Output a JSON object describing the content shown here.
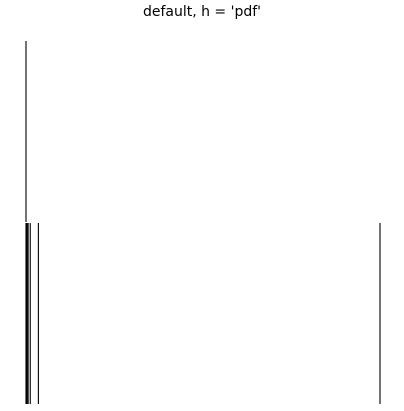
{
  "chart_data": {
    "type": "rug",
    "title": "default, h = 'pdf'",
    "xlabel": "",
    "ylabel": "",
    "grid": false,
    "axes_visible": false,
    "color": "#000000",
    "panels": [
      {
        "name": "top",
        "x": [
          0.0
        ]
      },
      {
        "name": "bottom",
        "x": [
          0.0,
          0.003,
          0.006,
          0.012,
          0.035,
          1.0
        ]
      }
    ],
    "xlim": [
      0.0,
      1.0
    ]
  }
}
